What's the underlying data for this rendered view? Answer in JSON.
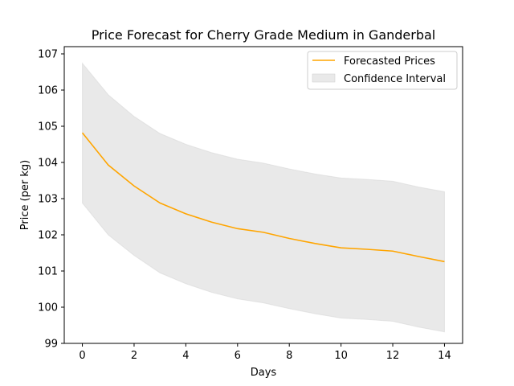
{
  "chart_data": {
    "type": "line",
    "title": "Price Forecast for Cherry Grade Medium in Ganderbal",
    "xlabel": "Days",
    "ylabel": "Price (per kg)",
    "xlim": [
      -0.7,
      14.7
    ],
    "ylim": [
      99.0,
      107.2
    ],
    "xticks": [
      0,
      2,
      4,
      6,
      8,
      10,
      12,
      14
    ],
    "yticks": [
      99,
      100,
      101,
      102,
      103,
      104,
      105,
      106,
      107
    ],
    "x": [
      0,
      1,
      2,
      3,
      4,
      5,
      6,
      7,
      8,
      9,
      10,
      11,
      12,
      13,
      14
    ],
    "series": [
      {
        "name": "Forecasted Prices",
        "color": "#ffa500",
        "values": [
          104.82,
          103.93,
          103.35,
          102.88,
          102.58,
          102.35,
          102.17,
          102.07,
          101.9,
          101.76,
          101.64,
          101.6,
          101.55,
          101.4,
          101.26
        ]
      }
    ],
    "band": {
      "name": "Confidence Interval",
      "color": "#d3d3d3",
      "lower": [
        102.88,
        102.0,
        101.43,
        100.95,
        100.65,
        100.41,
        100.23,
        100.12,
        99.96,
        99.82,
        99.7,
        99.66,
        99.61,
        99.45,
        99.32
      ],
      "upper": [
        106.74,
        105.87,
        105.27,
        104.8,
        104.5,
        104.27,
        104.09,
        103.98,
        103.82,
        103.68,
        103.57,
        103.53,
        103.48,
        103.32,
        103.19
      ]
    },
    "legend": {
      "position": "top-right",
      "entries": [
        "Forecasted Prices",
        "Confidence Interval"
      ]
    },
    "grid": false
  }
}
